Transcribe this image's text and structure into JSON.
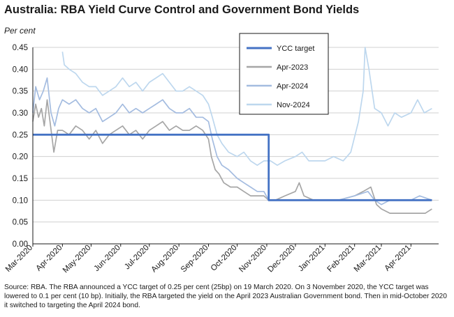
{
  "chart_data": {
    "type": "line",
    "title": "Australia: RBA Yield Curve Control and Government Bond Yields",
    "ylabel": "Per cent",
    "xlabel": "",
    "ylim": [
      0,
      0.45
    ],
    "y_ticks": [
      "0.00",
      "0.05",
      "0.10",
      "0.15",
      "0.20",
      "0.25",
      "0.30",
      "0.35",
      "0.40",
      "0.45"
    ],
    "x_range": [
      "2020-03-01",
      "2021-04-30"
    ],
    "x_ticks": [
      {
        "label": "Mar-2020",
        "date": "2020-03-01"
      },
      {
        "label": "Apr-2020",
        "date": "2020-04-01"
      },
      {
        "label": "May-2020",
        "date": "2020-05-01"
      },
      {
        "label": "Jun-2020",
        "date": "2020-06-01"
      },
      {
        "label": "Jul-2020",
        "date": "2020-07-01"
      },
      {
        "label": "Aug-2020",
        "date": "2020-08-01"
      },
      {
        "label": "Sep-2020",
        "date": "2020-09-01"
      },
      {
        "label": "Oct-2020",
        "date": "2020-10-01"
      },
      {
        "label": "Nov-2020",
        "date": "2020-11-01"
      },
      {
        "label": "Dec-2020",
        "date": "2020-12-01"
      },
      {
        "label": "Jan-2021",
        "date": "2021-01-01"
      },
      {
        "label": "Feb-2021",
        "date": "2021-02-01"
      },
      {
        "label": "Mar-2021",
        "date": "2021-03-01"
      },
      {
        "label": "Apr-2021",
        "date": "2021-04-01"
      }
    ],
    "grid": "horizontal",
    "legend_position": "top-right",
    "series": [
      {
        "name": "YCC target",
        "color": "#4472C4",
        "style": "step",
        "points": [
          [
            "2020-03-01",
            0.25
          ],
          [
            "2020-11-03",
            0.25
          ],
          [
            "2020-11-03",
            0.1
          ],
          [
            "2021-04-23",
            0.1
          ]
        ]
      },
      {
        "name": "Apr-2023",
        "color": "#A6A6A6",
        "points": [
          [
            "2020-03-01",
            0.28
          ],
          [
            "2020-03-04",
            0.32
          ],
          [
            "2020-03-07",
            0.29
          ],
          [
            "2020-03-10",
            0.31
          ],
          [
            "2020-03-13",
            0.27
          ],
          [
            "2020-03-16",
            0.33
          ],
          [
            "2020-03-19",
            0.28
          ],
          [
            "2020-03-23",
            0.21
          ],
          [
            "2020-03-27",
            0.26
          ],
          [
            "2020-04-01",
            0.26
          ],
          [
            "2020-04-08",
            0.25
          ],
          [
            "2020-04-15",
            0.27
          ],
          [
            "2020-04-22",
            0.26
          ],
          [
            "2020-04-29",
            0.24
          ],
          [
            "2020-05-06",
            0.26
          ],
          [
            "2020-05-13",
            0.23
          ],
          [
            "2020-05-20",
            0.25
          ],
          [
            "2020-05-27",
            0.26
          ],
          [
            "2020-06-03",
            0.27
          ],
          [
            "2020-06-10",
            0.25
          ],
          [
            "2020-06-17",
            0.26
          ],
          [
            "2020-06-24",
            0.24
          ],
          [
            "2020-07-01",
            0.26
          ],
          [
            "2020-07-08",
            0.27
          ],
          [
            "2020-07-15",
            0.28
          ],
          [
            "2020-07-22",
            0.26
          ],
          [
            "2020-07-29",
            0.27
          ],
          [
            "2020-08-05",
            0.26
          ],
          [
            "2020-08-12",
            0.26
          ],
          [
            "2020-08-19",
            0.27
          ],
          [
            "2020-08-26",
            0.26
          ],
          [
            "2020-09-01",
            0.24
          ],
          [
            "2020-09-04",
            0.2
          ],
          [
            "2020-09-08",
            0.17
          ],
          [
            "2020-09-12",
            0.16
          ],
          [
            "2020-09-17",
            0.14
          ],
          [
            "2020-09-24",
            0.13
          ],
          [
            "2020-10-01",
            0.13
          ],
          [
            "2020-10-08",
            0.12
          ],
          [
            "2020-10-15",
            0.11
          ],
          [
            "2020-10-22",
            0.11
          ],
          [
            "2020-10-29",
            0.11
          ],
          [
            "2020-11-03",
            0.1
          ],
          [
            "2020-11-10",
            0.1
          ],
          [
            "2020-11-20",
            0.11
          ],
          [
            "2020-12-01",
            0.12
          ],
          [
            "2020-12-05",
            0.14
          ],
          [
            "2020-12-10",
            0.11
          ],
          [
            "2020-12-20",
            0.1
          ],
          [
            "2021-01-01",
            0.1
          ],
          [
            "2021-01-15",
            0.1
          ],
          [
            "2021-02-01",
            0.11
          ],
          [
            "2021-02-10",
            0.12
          ],
          [
            "2021-02-18",
            0.13
          ],
          [
            "2021-02-24",
            0.09
          ],
          [
            "2021-03-01",
            0.08
          ],
          [
            "2021-03-10",
            0.07
          ],
          [
            "2021-03-20",
            0.07
          ],
          [
            "2021-04-01",
            0.07
          ],
          [
            "2021-04-10",
            0.07
          ],
          [
            "2021-04-16",
            0.07
          ],
          [
            "2021-04-23",
            0.08
          ]
        ]
      },
      {
        "name": "Apr-2024",
        "color": "#A4BCE0",
        "points": [
          [
            "2020-03-01",
            0.3
          ],
          [
            "2020-03-04",
            0.36
          ],
          [
            "2020-03-08",
            0.33
          ],
          [
            "2020-03-12",
            0.35
          ],
          [
            "2020-03-16",
            0.38
          ],
          [
            "2020-03-20",
            0.3
          ],
          [
            "2020-03-24",
            0.27
          ],
          [
            "2020-03-28",
            0.31
          ],
          [
            "2020-04-01",
            0.33
          ],
          [
            "2020-04-08",
            0.32
          ],
          [
            "2020-04-15",
            0.33
          ],
          [
            "2020-04-22",
            0.31
          ],
          [
            "2020-04-29",
            0.3
          ],
          [
            "2020-05-06",
            0.31
          ],
          [
            "2020-05-13",
            0.28
          ],
          [
            "2020-05-20",
            0.29
          ],
          [
            "2020-05-27",
            0.3
          ],
          [
            "2020-06-03",
            0.32
          ],
          [
            "2020-06-10",
            0.3
          ],
          [
            "2020-06-17",
            0.31
          ],
          [
            "2020-06-24",
            0.3
          ],
          [
            "2020-07-01",
            0.31
          ],
          [
            "2020-07-08",
            0.32
          ],
          [
            "2020-07-15",
            0.33
          ],
          [
            "2020-07-22",
            0.31
          ],
          [
            "2020-07-29",
            0.3
          ],
          [
            "2020-08-05",
            0.3
          ],
          [
            "2020-08-12",
            0.31
          ],
          [
            "2020-08-19",
            0.29
          ],
          [
            "2020-08-26",
            0.29
          ],
          [
            "2020-09-01",
            0.28
          ],
          [
            "2020-09-05",
            0.24
          ],
          [
            "2020-09-10",
            0.2
          ],
          [
            "2020-09-15",
            0.18
          ],
          [
            "2020-09-22",
            0.17
          ],
          [
            "2020-10-01",
            0.15
          ],
          [
            "2020-10-08",
            0.14
          ],
          [
            "2020-10-15",
            0.13
          ],
          [
            "2020-10-22",
            0.12
          ],
          [
            "2020-10-29",
            0.12
          ],
          [
            "2020-11-03",
            0.1
          ],
          [
            "2020-11-10",
            0.1
          ],
          [
            "2020-11-20",
            0.1
          ],
          [
            "2020-12-01",
            0.1
          ],
          [
            "2020-12-15",
            0.1
          ],
          [
            "2021-01-01",
            0.1
          ],
          [
            "2021-01-15",
            0.1
          ],
          [
            "2021-02-01",
            0.11
          ],
          [
            "2021-02-15",
            0.12
          ],
          [
            "2021-02-22",
            0.1
          ],
          [
            "2021-03-01",
            0.09
          ],
          [
            "2021-03-10",
            0.1
          ],
          [
            "2021-03-20",
            0.1
          ],
          [
            "2021-04-01",
            0.1
          ],
          [
            "2021-04-10",
            0.11
          ],
          [
            "2021-04-23",
            0.1
          ]
        ]
      },
      {
        "name": "Nov-2024",
        "color": "#BDD7EE",
        "points": [
          [
            "2020-04-01",
            0.44
          ],
          [
            "2020-04-03",
            0.41
          ],
          [
            "2020-04-08",
            0.4
          ],
          [
            "2020-04-15",
            0.39
          ],
          [
            "2020-04-22",
            0.37
          ],
          [
            "2020-04-29",
            0.36
          ],
          [
            "2020-05-06",
            0.36
          ],
          [
            "2020-05-13",
            0.34
          ],
          [
            "2020-05-20",
            0.35
          ],
          [
            "2020-05-27",
            0.36
          ],
          [
            "2020-06-03",
            0.38
          ],
          [
            "2020-06-10",
            0.36
          ],
          [
            "2020-06-17",
            0.37
          ],
          [
            "2020-06-24",
            0.35
          ],
          [
            "2020-07-01",
            0.37
          ],
          [
            "2020-07-08",
            0.38
          ],
          [
            "2020-07-15",
            0.39
          ],
          [
            "2020-07-22",
            0.37
          ],
          [
            "2020-07-29",
            0.35
          ],
          [
            "2020-08-05",
            0.35
          ],
          [
            "2020-08-12",
            0.36
          ],
          [
            "2020-08-19",
            0.35
          ],
          [
            "2020-08-26",
            0.34
          ],
          [
            "2020-09-01",
            0.32
          ],
          [
            "2020-09-05",
            0.29
          ],
          [
            "2020-09-10",
            0.25
          ],
          [
            "2020-09-15",
            0.23
          ],
          [
            "2020-09-22",
            0.21
          ],
          [
            "2020-10-01",
            0.2
          ],
          [
            "2020-10-08",
            0.21
          ],
          [
            "2020-10-15",
            0.19
          ],
          [
            "2020-10-22",
            0.18
          ],
          [
            "2020-10-29",
            0.19
          ],
          [
            "2020-11-05",
            0.19
          ],
          [
            "2020-11-12",
            0.18
          ],
          [
            "2020-11-20",
            0.19
          ],
          [
            "2020-12-01",
            0.2
          ],
          [
            "2020-12-08",
            0.21
          ],
          [
            "2020-12-15",
            0.19
          ],
          [
            "2021-01-01",
            0.19
          ],
          [
            "2021-01-10",
            0.2
          ],
          [
            "2021-01-20",
            0.19
          ],
          [
            "2021-01-28",
            0.21
          ],
          [
            "2021-02-05",
            0.28
          ],
          [
            "2021-02-10",
            0.35
          ],
          [
            "2021-02-12",
            0.45
          ],
          [
            "2021-02-16",
            0.4
          ],
          [
            "2021-02-22",
            0.31
          ],
          [
            "2021-03-01",
            0.3
          ],
          [
            "2021-03-08",
            0.27
          ],
          [
            "2021-03-15",
            0.3
          ],
          [
            "2021-03-22",
            0.29
          ],
          [
            "2021-04-01",
            0.3
          ],
          [
            "2021-04-08",
            0.33
          ],
          [
            "2021-04-15",
            0.3
          ],
          [
            "2021-04-23",
            0.31
          ]
        ]
      }
    ]
  },
  "source_note": "Source: RBA.  The RBA announced a YCC target of 0.25 per cent (25bp) on 19 March 2020.  On 3 November 2020, the YCC target was lowered to 0.1 per cent (10 bp).  Initially, the RBA targeted the yield on the April 2023  Australian Government bond.  Then in mid-October 2020 it switched to targeting the April 2024 bond."
}
